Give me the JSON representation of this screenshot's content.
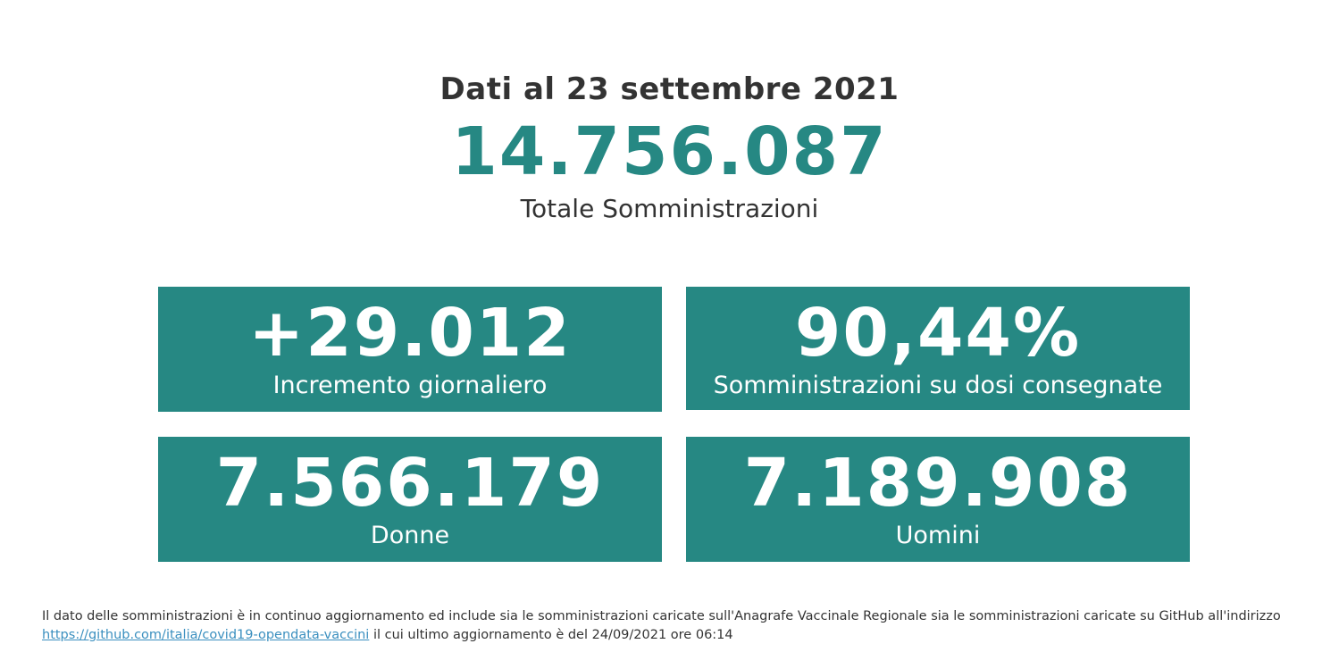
{
  "header": {
    "date_title": "Dati al 23 settembre 2021",
    "total_value": "14.756.087",
    "total_label": "Totale Somministrazioni"
  },
  "cards": [
    {
      "value": "+29.012",
      "label": "Incremento giornaliero"
    },
    {
      "value": "90,44%",
      "label": "Somministrazioni su dosi consegnate"
    },
    {
      "value": "7.566.179",
      "label": "Donne"
    },
    {
      "value": "7.189.908",
      "label": "Uomini"
    }
  ],
  "footnote": {
    "text_before": "Il dato delle somministrazioni è in continuo aggiornamento ed include sia le somministrazioni caricate sull'Anagrafe Vaccinale Regionale sia le somministrazioni caricate su GitHub all'indirizzo",
    "link_text": "https://github.com/italia/covid19-opendata-vaccini",
    "text_after": "il cui ultimo aggiornamento è del 24/09/2021 ore 06:14"
  },
  "colors": {
    "accent": "#268883",
    "text": "#333333",
    "link": "#3a8fbf",
    "card_text": "#ffffff"
  }
}
